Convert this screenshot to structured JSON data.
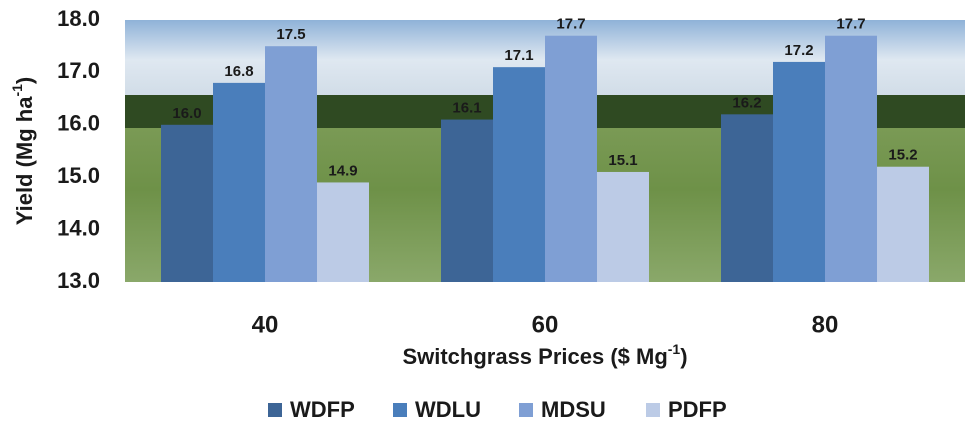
{
  "chart_data": {
    "type": "bar",
    "categories": [
      "40",
      "60",
      "80"
    ],
    "series": [
      {
        "name": "WDFP",
        "color": "#3d6596",
        "values": [
          16,
          16.1,
          16.2
        ],
        "value_labels": [
          "16.0",
          "16.1",
          "16.2"
        ]
      },
      {
        "name": "WDLU",
        "color": "#4a7ebb",
        "values": [
          16.8,
          17.1,
          17.2
        ],
        "value_labels": [
          "16.8",
          "17.1",
          "17.2"
        ]
      },
      {
        "name": "MDSU",
        "color": "#7f9fd4",
        "values": [
          17.5,
          17.7,
          17.7
        ],
        "value_labels": [
          "17.5",
          "17.7",
          "17.7"
        ]
      },
      {
        "name": "PDFP",
        "color": "#bccbe6",
        "values": [
          14.9,
          15.1,
          15.2
        ],
        "value_labels": [
          "14.9",
          "15.1",
          "15.2"
        ]
      }
    ],
    "ylim": [
      13,
      18
    ],
    "yticks": [
      {
        "value": 13,
        "label": "13.0"
      },
      {
        "value": 14,
        "label": "14.0"
      },
      {
        "value": 15,
        "label": "15.0"
      },
      {
        "value": 16,
        "label": "16.0"
      },
      {
        "value": 17,
        "label": "17.0"
      },
      {
        "value": 18,
        "label": "18.0"
      }
    ],
    "ylabel": [
      "Yield (Mg ha",
      "-1",
      ")"
    ],
    "xlabel": [
      "Switchgrass Prices ($ Mg",
      "-1",
      ")"
    ],
    "legend": "bottom"
  }
}
